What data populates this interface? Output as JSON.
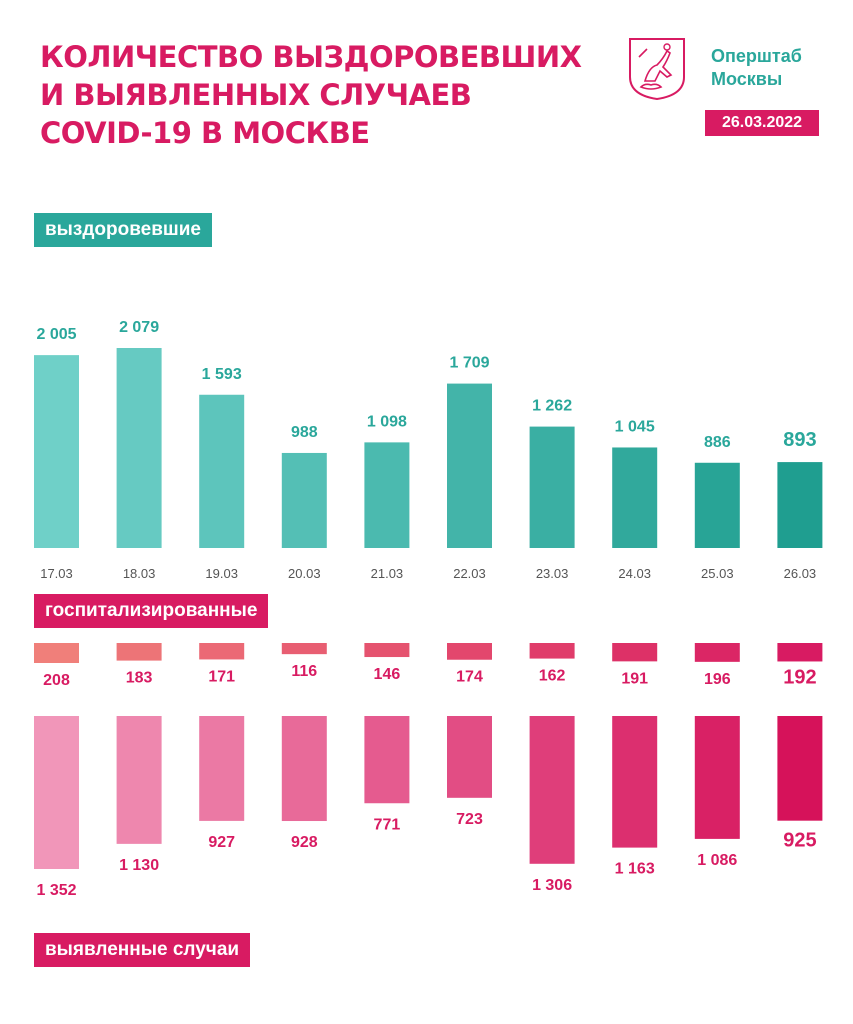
{
  "header": {
    "title_lines": [
      "КОЛИЧЕСТВО ВЫЗДОРОВЕВШИХ",
      "И ВЫЯВЛЕННЫХ СЛУЧАЕВ",
      "COVID-19 В МОСКВЕ"
    ],
    "org_lines": [
      "Оперштаб",
      "Москвы"
    ],
    "date": "26.03.2022"
  },
  "labels": {
    "recovered": "выздоровевшие",
    "hospitalized": "госпитализированные",
    "cases": "выявленные случаи"
  },
  "colors": {
    "accent_pink": "#d81b62",
    "accent_teal": "#2aa79b",
    "teal_light": "#6fd0c8",
    "teal_dark": "#1f9e90",
    "hosp_light": "#f07f7a",
    "hosp_dark": "#d81b62",
    "cases_light": "#f196b9",
    "cases_dark": "#d6125a"
  },
  "chart_data": {
    "type": "bar",
    "categories": [
      "17.03",
      "18.03",
      "19.03",
      "20.03",
      "21.03",
      "22.03",
      "23.03",
      "24.03",
      "25.03",
      "26.03"
    ],
    "series": [
      {
        "name": "выздоровевшие",
        "values": [
          2005,
          2079,
          1593,
          988,
          1098,
          1709,
          1262,
          1045,
          886,
          893
        ],
        "labels": [
          "2 005",
          "2 079",
          "1 593",
          "988",
          "1 098",
          "1 709",
          "1 262",
          "1 045",
          "886",
          "893"
        ]
      },
      {
        "name": "госпитализированные",
        "values": [
          208,
          183,
          171,
          116,
          146,
          174,
          162,
          191,
          196,
          192
        ],
        "labels": [
          "208",
          "183",
          "171",
          "116",
          "146",
          "174",
          "162",
          "191",
          "196",
          "192"
        ]
      },
      {
        "name": "выявленные случаи",
        "values": [
          1352,
          1130,
          927,
          928,
          771,
          723,
          1306,
          1163,
          1086,
          925
        ],
        "labels": [
          "1 352",
          "1 130",
          "927",
          "928",
          "771",
          "723",
          "1 306",
          "1 163",
          "1 086",
          "925"
        ]
      }
    ],
    "grid": false,
    "legend": "none"
  }
}
